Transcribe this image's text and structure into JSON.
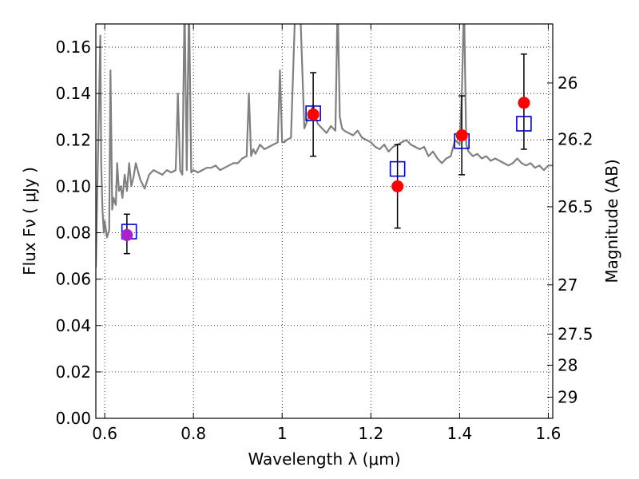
{
  "chart_data": {
    "type": "scatter",
    "xlabel": "Wavelength  λ (μm)",
    "ylabel": "Flux  Fν  ( μJy )",
    "y2label": "Magnitude (AB)",
    "xlim": [
      0.58,
      1.61
    ],
    "ylim": [
      0.0,
      0.17
    ],
    "grid": true,
    "x_ticks": [
      0.6,
      0.8,
      1.0,
      1.2,
      1.4,
      1.6
    ],
    "x_tick_labels": [
      "0.6",
      "0.8",
      "1",
      "1.2",
      "1.4",
      "1.6"
    ],
    "y_ticks": [
      0.0,
      0.02,
      0.04,
      0.06,
      0.08,
      0.1,
      0.12,
      0.14,
      0.16
    ],
    "y_tick_labels": [
      "0.00",
      "0.02",
      "0.04",
      "0.06",
      "0.08",
      "0.10",
      "0.12",
      "0.14",
      "0.16"
    ],
    "y2_ticks": [
      26,
      26.2,
      26.5,
      27,
      27.5,
      28,
      29
    ],
    "y2_tick_labels": [
      "26",
      "26.2",
      "26.5",
      "27",
      "27.5",
      "28",
      "29"
    ],
    "colors": {
      "model": "#808080",
      "observed": "#ff0000",
      "model_phot": "#0000cc",
      "error": "#000000",
      "first_point": "#aa22cc"
    },
    "series": [
      {
        "type": "errorbar",
        "x": [
          0.65,
          1.07,
          1.26,
          1.405,
          1.545
        ],
        "y": [
          0.079,
          0.131,
          0.1,
          0.122,
          0.136
        ],
        "yerr_low": [
          0.008,
          0.018,
          0.018,
          0.017,
          0.02
        ],
        "yerr_high": [
          0.009,
          0.018,
          0.018,
          0.017,
          0.021
        ]
      },
      {
        "type": "open-square",
        "x": [
          0.655,
          1.07,
          1.26,
          1.405,
          1.545
        ],
        "y": [
          0.0805,
          0.1315,
          0.1075,
          0.1195,
          0.127
        ]
      },
      {
        "type": "model-spectrum",
        "x": [
          0.58,
          0.59,
          0.592,
          0.595,
          0.598,
          0.6,
          0.605,
          0.61,
          0.613,
          0.617,
          0.62,
          0.625,
          0.628,
          0.632,
          0.636,
          0.64,
          0.645,
          0.65,
          0.655,
          0.66,
          0.665,
          0.67,
          0.68,
          0.69,
          0.7,
          0.71,
          0.72,
          0.73,
          0.74,
          0.75,
          0.76,
          0.765,
          0.77,
          0.775,
          0.78,
          0.785,
          0.79,
          0.795,
          0.8,
          0.81,
          0.82,
          0.83,
          0.84,
          0.85,
          0.86,
          0.87,
          0.88,
          0.89,
          0.9,
          0.91,
          0.92,
          0.925,
          0.93,
          0.935,
          0.94,
          0.95,
          0.96,
          0.97,
          0.98,
          0.99,
          0.995,
          1.0,
          1.005,
          1.01,
          1.02,
          1.03,
          1.04,
          1.05,
          1.06,
          1.07,
          1.08,
          1.09,
          1.1,
          1.11,
          1.12,
          1.125,
          1.13,
          1.135,
          1.14,
          1.15,
          1.16,
          1.17,
          1.18,
          1.19,
          1.2,
          1.21,
          1.22,
          1.23,
          1.24,
          1.25,
          1.26,
          1.27,
          1.28,
          1.29,
          1.3,
          1.31,
          1.32,
          1.33,
          1.34,
          1.35,
          1.36,
          1.37,
          1.38,
          1.39,
          1.4,
          1.405,
          1.41,
          1.415,
          1.42,
          1.43,
          1.44,
          1.45,
          1.46,
          1.47,
          1.48,
          1.49,
          1.5,
          1.51,
          1.52,
          1.53,
          1.54,
          1.55,
          1.56,
          1.57,
          1.58,
          1.59,
          1.6,
          1.61
        ],
        "y": [
          0.065,
          0.165,
          0.11,
          0.09,
          0.08,
          0.085,
          0.078,
          0.081,
          0.15,
          0.09,
          0.095,
          0.092,
          0.11,
          0.098,
          0.1,
          0.095,
          0.105,
          0.098,
          0.11,
          0.1,
          0.104,
          0.11,
          0.103,
          0.099,
          0.105,
          0.107,
          0.106,
          0.105,
          0.107,
          0.106,
          0.107,
          0.14,
          0.107,
          0.105,
          0.18,
          0.107,
          0.18,
          0.106,
          0.107,
          0.106,
          0.107,
          0.108,
          0.108,
          0.109,
          0.107,
          0.108,
          0.109,
          0.11,
          0.11,
          0.112,
          0.113,
          0.14,
          0.113,
          0.116,
          0.114,
          0.118,
          0.116,
          0.117,
          0.118,
          0.119,
          0.15,
          0.119,
          0.119,
          0.12,
          0.121,
          0.18,
          0.18,
          0.125,
          0.13,
          0.135,
          0.127,
          0.125,
          0.123,
          0.126,
          0.124,
          0.18,
          0.13,
          0.125,
          0.124,
          0.123,
          0.122,
          0.124,
          0.121,
          0.12,
          0.119,
          0.117,
          0.116,
          0.118,
          0.115,
          0.117,
          0.118,
          0.119,
          0.12,
          0.118,
          0.117,
          0.116,
          0.117,
          0.113,
          0.115,
          0.112,
          0.11,
          0.112,
          0.113,
          0.12,
          0.118,
          0.14,
          0.18,
          0.118,
          0.115,
          0.113,
          0.114,
          0.112,
          0.113,
          0.111,
          0.112,
          0.111,
          0.11,
          0.109,
          0.11,
          0.112,
          0.11,
          0.109,
          0.11,
          0.108,
          0.109,
          0.107,
          0.109,
          0.109
        ]
      }
    ]
  }
}
